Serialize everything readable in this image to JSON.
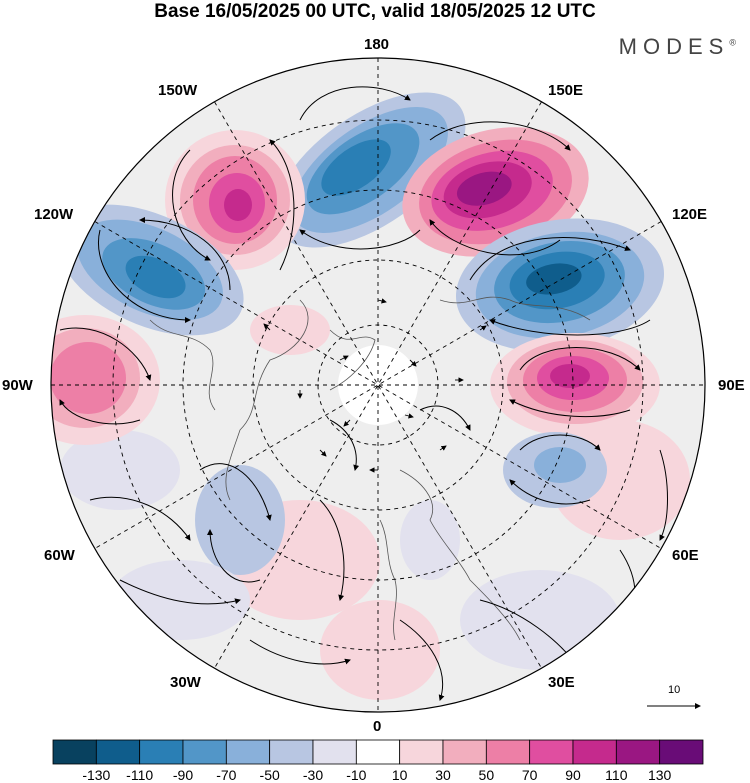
{
  "header": {
    "title": "Base 16/05/2025 00 UTC, valid 18/05/2025 12 UTC",
    "brand": "MODES",
    "brand_mark": "®"
  },
  "map": {
    "projection": "north-polar-stereographic",
    "longitude_labels": {
      "lon_180": "180",
      "lon_150w": "150W",
      "lon_150e": "150E",
      "lon_120w": "120W",
      "lon_120e": "120E",
      "lon_90w": "90W",
      "lon_90e": "90E",
      "lon_60w": "60W",
      "lon_60e": "60E",
      "lon_30w": "30W",
      "lon_30e": "30E",
      "lon_0": "0"
    },
    "reference_vector_label": "10"
  },
  "colorbar": {
    "colors": [
      "#08415f",
      "#0f5d8c",
      "#2a7fb5",
      "#5296c8",
      "#89b0da",
      "#b8c6e2",
      "#e2e1ee",
      "#ffffff",
      "#f7d6dc",
      "#f2aebe",
      "#ed7fa6",
      "#e04ea0",
      "#c52a8d",
      "#9a1782",
      "#690c77"
    ],
    "tick_labels": [
      "-130",
      "-110",
      "-90",
      "-70",
      "-50",
      "-30",
      "-10",
      "10",
      "30",
      "50",
      "70",
      "90",
      "110",
      "130"
    ]
  },
  "anomaly_centers": [
    {
      "name": "blue-150w-180",
      "sign": "negative",
      "level": "-110"
    },
    {
      "name": "pink-150e",
      "sign": "positive",
      "level": "130"
    },
    {
      "name": "pink-150w",
      "sign": "positive",
      "level": "110"
    },
    {
      "name": "blue-120w",
      "sign": "negative",
      "level": "-110"
    },
    {
      "name": "blue-120e",
      "sign": "negative",
      "level": "-130"
    },
    {
      "name": "pink-90e",
      "sign": "positive",
      "level": "130"
    },
    {
      "name": "pink-90w",
      "sign": "positive",
      "level": "70"
    },
    {
      "name": "blue-60e",
      "sign": "negative",
      "level": "-50"
    }
  ]
}
